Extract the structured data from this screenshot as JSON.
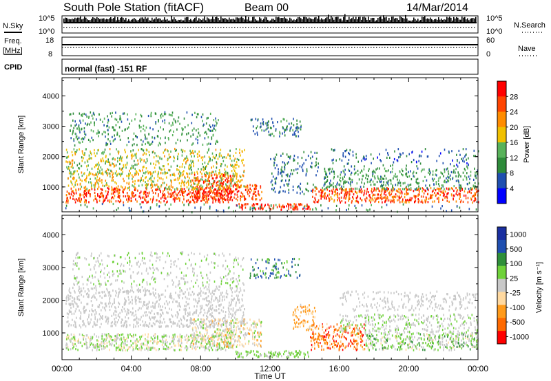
{
  "header": {
    "station": "South Pole Station (fitACF)",
    "beam": "Beam 00",
    "date": "14/Mar/2014"
  },
  "summary_panels": {
    "nsky_label": "N.Sky",
    "nsearch_label": "N.Search",
    "noise_ticks": [
      "10^5",
      "10^0"
    ],
    "freq_label": "Freq.",
    "freq_unit": "[MHz]",
    "freq_ticks": [
      "18",
      "8"
    ],
    "nave_label": "Nave",
    "nave_ticks": [
      "60",
      "0"
    ],
    "cpid_label": "CPID",
    "cpid_value": "normal (fast) -151 RF"
  },
  "colors": {
    "power_scale": [
      "#0000ff",
      "#1f4fb0",
      "#2e8b3a",
      "#58b25a",
      "#f0c000",
      "#ff8c00",
      "#ff4400",
      "#ff0000"
    ],
    "velocity_scale": [
      "#ff0000",
      "#ff6a00",
      "#ff9a1a",
      "#ffd9a0",
      "#c8c8c8",
      "#6fd23a",
      "#2f8f3a",
      "#1f4fb0",
      "#1a2fa0"
    ]
  },
  "chart_data": [
    {
      "type": "heatmap",
      "name": "power",
      "xlabel": "",
      "ylabel": "Slant Range [km]",
      "xlim": [
        0,
        24
      ],
      "ylim": [
        180,
        4600
      ],
      "yticks": [
        1000,
        2000,
        3000,
        4000
      ],
      "colorbar": {
        "label": "Power [dB]",
        "ticks": [
          "4",
          "8",
          "12",
          "16",
          "20",
          "24",
          "28"
        ],
        "range": [
          0,
          30
        ]
      },
      "bands": [
        {
          "t0": 0.2,
          "t1": 9.8,
          "r0": 520,
          "r1": 1000,
          "v0": 20,
          "v1": 30,
          "density": 0.85
        },
        {
          "t0": 7.5,
          "t1": 10.0,
          "r0": 600,
          "r1": 1450,
          "v0": 22,
          "v1": 30,
          "density": 0.85
        },
        {
          "t0": 10.0,
          "t1": 11.5,
          "r0": 600,
          "r1": 1100,
          "v0": 20,
          "v1": 28,
          "density": 0.8
        },
        {
          "t0": 10.0,
          "t1": 14.3,
          "r0": 280,
          "r1": 480,
          "v0": 22,
          "v1": 30,
          "density": 0.9
        },
        {
          "t0": 0.3,
          "t1": 10.5,
          "r0": 950,
          "r1": 1500,
          "v0": 12,
          "v1": 22,
          "density": 0.55
        },
        {
          "t0": 0.2,
          "t1": 10.5,
          "r0": 1450,
          "r1": 2300,
          "v0": 10,
          "v1": 20,
          "density": 0.45
        },
        {
          "t0": 0.4,
          "t1": 9.0,
          "r0": 2400,
          "r1": 3500,
          "v0": 6,
          "v1": 14,
          "density": 0.3
        },
        {
          "t0": 10.8,
          "t1": 13.8,
          "r0": 2700,
          "r1": 3300,
          "v0": 4,
          "v1": 12,
          "density": 0.45
        },
        {
          "t0": 12.0,
          "t1": 14.8,
          "r0": 800,
          "r1": 2200,
          "v0": 4,
          "v1": 10,
          "density": 0.3
        },
        {
          "t0": 14.4,
          "t1": 24.0,
          "r0": 520,
          "r1": 1000,
          "v0": 18,
          "v1": 30,
          "density": 0.85
        },
        {
          "t0": 15.0,
          "t1": 24.0,
          "r0": 950,
          "r1": 1650,
          "v0": 6,
          "v1": 14,
          "density": 0.5
        },
        {
          "t0": 15.5,
          "t1": 24.0,
          "r0": 1700,
          "r1": 2300,
          "v0": 3,
          "v1": 10,
          "density": 0.2
        },
        {
          "t0": 0.0,
          "t1": 24.0,
          "r0": 200,
          "r1": 480,
          "v0": 4,
          "v1": 14,
          "density": 0.12
        }
      ]
    },
    {
      "type": "heatmap",
      "name": "velocity",
      "xlabel": "Time UT",
      "ylabel": "Slant Range [km]",
      "xlim": [
        0,
        24
      ],
      "ylim": [
        180,
        4600
      ],
      "xticks": [
        "00:00",
        "04:00",
        "08:00",
        "12:00",
        "16:00",
        "20:00",
        "00:00"
      ],
      "yticks": [
        1000,
        2000,
        3000,
        4000
      ],
      "colorbar": {
        "label": "Velocity [m s⁻¹]",
        "ticks": [
          "1000",
          "500",
          "100",
          "25",
          "-25",
          "-100",
          "-500",
          "-1000"
        ],
        "range": [
          -1200,
          1200
        ]
      },
      "bands": [
        {
          "t0": 0.2,
          "t1": 10.0,
          "r0": 500,
          "r1": 1000,
          "v0": -300,
          "v1": 400,
          "density": 0.85
        },
        {
          "t0": 7.5,
          "t1": 11.5,
          "r0": 600,
          "r1": 1450,
          "v0": -500,
          "v1": 300,
          "density": 0.75
        },
        {
          "t0": 10.0,
          "t1": 14.3,
          "r0": 280,
          "r1": 480,
          "v0": 80,
          "v1": 300,
          "density": 0.9
        },
        {
          "t0": 0.2,
          "t1": 10.5,
          "r0": 1200,
          "r1": 2400,
          "v0": -20,
          "v1": 20,
          "density": 0.55
        },
        {
          "t0": 0.5,
          "t1": 10.5,
          "r0": 2400,
          "r1": 3500,
          "v0": -30,
          "v1": 200,
          "density": 0.25
        },
        {
          "t0": 10.8,
          "t1": 13.8,
          "r0": 2700,
          "r1": 3300,
          "v0": 200,
          "v1": 900,
          "density": 0.4
        },
        {
          "t0": 13.3,
          "t1": 14.6,
          "r0": 1100,
          "r1": 1900,
          "v0": -700,
          "v1": -100,
          "density": 0.6
        },
        {
          "t0": 14.3,
          "t1": 17.5,
          "r0": 500,
          "r1": 1300,
          "v0": -1100,
          "v1": -200,
          "density": 0.7
        },
        {
          "t0": 17.5,
          "t1": 24.0,
          "r0": 500,
          "r1": 1000,
          "v0": -200,
          "v1": 500,
          "density": 0.85
        },
        {
          "t0": 16.0,
          "t1": 24.0,
          "r0": 1000,
          "r1": 1600,
          "v0": 20,
          "v1": 200,
          "density": 0.5
        },
        {
          "t0": 16.0,
          "t1": 24.0,
          "r0": 1700,
          "r1": 2300,
          "v0": -20,
          "v1": 20,
          "density": 0.35
        }
      ]
    }
  ]
}
